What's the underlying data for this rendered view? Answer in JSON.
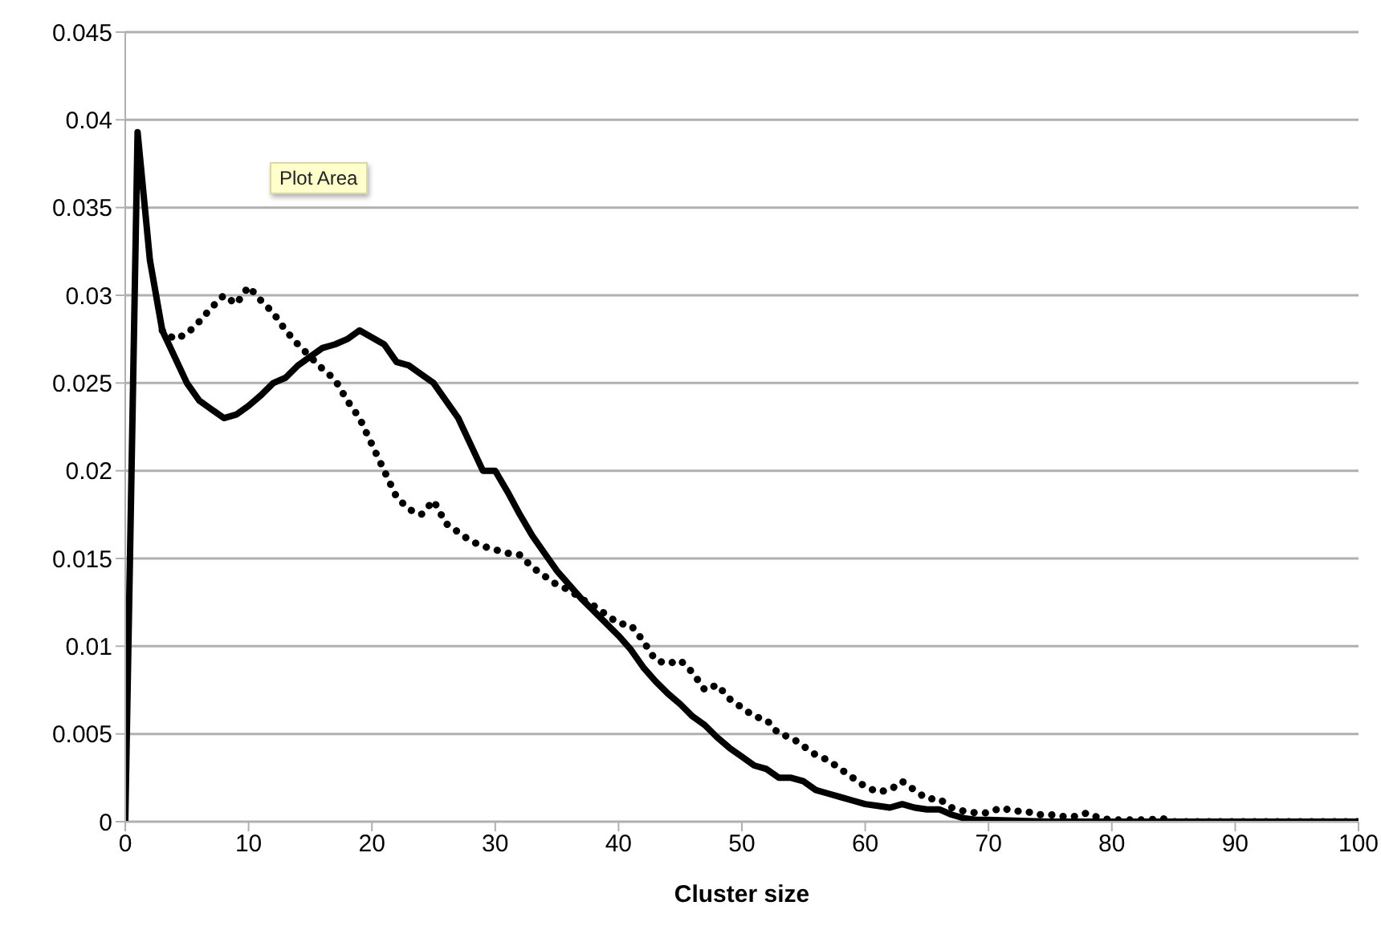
{
  "chart_data": {
    "type": "line",
    "xlabel": "Cluster size",
    "annotations": [
      "Plot Area"
    ],
    "xlim": [
      0,
      100
    ],
    "xticks": [
      0,
      10,
      20,
      30,
      40,
      50,
      60,
      70,
      80,
      90,
      100
    ],
    "ylim": [
      0,
      0.045
    ],
    "yticks": [
      0,
      0.005,
      0.01,
      0.015,
      0.02,
      0.025,
      0.03,
      0.035,
      0.04,
      0.045
    ],
    "grid": "y",
    "marker": "none",
    "series": [
      {
        "color": "#000000",
        "line_style": "solid",
        "x": [
          0,
          1,
          2,
          3,
          4,
          5,
          6,
          7,
          8,
          9,
          10,
          11,
          12,
          13,
          14,
          15,
          16,
          17,
          18,
          19,
          20,
          21,
          22,
          23,
          24,
          25,
          26,
          27,
          28,
          29,
          30,
          31,
          32,
          33,
          34,
          35,
          36,
          37,
          38,
          39,
          40,
          41,
          42,
          43,
          44,
          45,
          46,
          47,
          48,
          49,
          50,
          51,
          52,
          53,
          54,
          55,
          56,
          57,
          58,
          59,
          60,
          61,
          62,
          63,
          64,
          65,
          66,
          67,
          68,
          69,
          70,
          75,
          80,
          85,
          90,
          95,
          100
        ],
        "values": [
          0,
          0.0393,
          0.032,
          0.028,
          0.0265,
          0.025,
          0.024,
          0.0235,
          0.023,
          0.0232,
          0.0237,
          0.0243,
          0.025,
          0.0253,
          0.026,
          0.0265,
          0.027,
          0.0272,
          0.0275,
          0.028,
          0.0276,
          0.0272,
          0.0262,
          0.026,
          0.0255,
          0.025,
          0.024,
          0.023,
          0.0215,
          0.02,
          0.02,
          0.0188,
          0.0175,
          0.0163,
          0.0153,
          0.0143,
          0.0135,
          0.0127,
          0.012,
          0.0113,
          0.0106,
          0.0098,
          0.0088,
          0.008,
          0.0073,
          0.0067,
          0.006,
          0.0055,
          0.0048,
          0.0042,
          0.0037,
          0.0032,
          0.003,
          0.0025,
          0.0025,
          0.0023,
          0.0018,
          0.0016,
          0.0014,
          0.0012,
          0.001,
          0.0009,
          0.0008,
          0.001,
          0.0008,
          0.0007,
          0.0007,
          0.0004,
          0.0002,
          0.0001,
          0.0001,
          0,
          0,
          0,
          0,
          0,
          0
        ]
      },
      {
        "color": "#000000",
        "line_style": "dotted",
        "x": [
          3,
          4,
          5,
          6,
          7,
          8,
          9,
          10,
          11,
          12,
          13,
          14,
          15,
          16,
          17,
          18,
          19,
          20,
          21,
          22,
          23,
          24,
          25,
          26,
          27,
          28,
          29,
          30,
          31,
          32,
          33,
          34,
          35,
          36,
          37,
          38,
          39,
          40,
          41,
          42,
          43,
          44,
          45,
          46,
          47,
          48,
          49,
          50,
          51,
          52,
          53,
          54,
          55,
          56,
          57,
          58,
          59,
          60,
          61,
          62,
          63,
          64,
          65,
          66,
          67,
          68,
          69,
          70,
          71,
          72,
          73,
          74,
          75,
          76,
          77,
          78,
          79,
          80,
          81,
          82,
          83,
          84,
          85,
          90,
          95,
          100
        ],
        "values": [
          0.028,
          0.0275,
          0.0278,
          0.0285,
          0.0293,
          0.03,
          0.0295,
          0.0305,
          0.0297,
          0.029,
          0.028,
          0.0272,
          0.0265,
          0.0258,
          0.0252,
          0.024,
          0.023,
          0.0215,
          0.02,
          0.0185,
          0.0178,
          0.0175,
          0.0183,
          0.017,
          0.0165,
          0.016,
          0.0157,
          0.0155,
          0.0153,
          0.0152,
          0.0145,
          0.014,
          0.0135,
          0.0132,
          0.0127,
          0.0123,
          0.0118,
          0.0113,
          0.0112,
          0.0103,
          0.0092,
          0.009,
          0.0092,
          0.0085,
          0.0075,
          0.0078,
          0.007,
          0.0065,
          0.006,
          0.0058,
          0.005,
          0.0048,
          0.0043,
          0.0038,
          0.0035,
          0.003,
          0.0025,
          0.002,
          0.0017,
          0.0018,
          0.0023,
          0.0018,
          0.0013,
          0.0013,
          0.0008,
          0.0006,
          0.0005,
          0.0005,
          0.0008,
          0.0006,
          0.0006,
          0.0004,
          0.0004,
          0.0003,
          0.0003,
          0.0005,
          0.0002,
          0.0001,
          0.0001,
          0.0001,
          0.0001,
          0.0002,
          0,
          0,
          0,
          0
        ]
      }
    ]
  }
}
